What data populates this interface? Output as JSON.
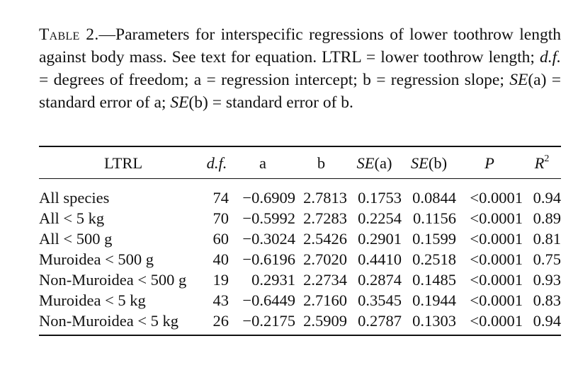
{
  "caption": {
    "label": "Table 2.",
    "text_before": "—Parameters for interspecific regressions of lower toothrow length against body mass. See text for equation. LTRL = lower toothrow length; ",
    "df_italic": "d.f.",
    "text_mid1": " = degrees of freedom; a = regression intercept; b = regression slope; ",
    "sea_italic": "SE",
    "text_mid2": "(a) = standard error of a; ",
    "seb_italic": "SE",
    "text_end": "(b) = standard error of b."
  },
  "table": {
    "headers": {
      "ltrl": "LTRL",
      "df": "d.f.",
      "a": "a",
      "b": "b",
      "sea_italic": "SE",
      "sea_rest": "(a)",
      "seb_italic": "SE",
      "seb_rest": "(b)",
      "p": "P",
      "r2_base": "R",
      "r2_sup": "2"
    },
    "rows": [
      {
        "group": "All species",
        "df": "74",
        "a": "−0.6909",
        "b": "2.7813",
        "sea": "0.1753",
        "seb": "0.0844",
        "p": "<0.0001",
        "r2": "0.94"
      },
      {
        "group": "All < 5 kg",
        "df": "70",
        "a": "−0.5992",
        "b": "2.7283",
        "sea": "0.2254",
        "seb": "0.1156",
        "p": "<0.0001",
        "r2": "0.89"
      },
      {
        "group": "All < 500 g",
        "df": "60",
        "a": "−0.3024",
        "b": "2.5426",
        "sea": "0.2901",
        "seb": "0.1599",
        "p": "<0.0001",
        "r2": "0.81"
      },
      {
        "group": "Muroidea < 500 g",
        "df": "40",
        "a": "−0.6196",
        "b": "2.7020",
        "sea": "0.4410",
        "seb": "0.2518",
        "p": "<0.0001",
        "r2": "0.75"
      },
      {
        "group": "Non-Muroidea < 500 g",
        "df": "19",
        "a": "0.2931",
        "b": "2.2734",
        "sea": "0.2874",
        "seb": "0.1485",
        "p": "<0.0001",
        "r2": "0.93"
      },
      {
        "group": "Muroidea < 5 kg",
        "df": "43",
        "a": "−0.6449",
        "b": "2.7160",
        "sea": "0.3545",
        "seb": "0.1944",
        "p": "<0.0001",
        "r2": "0.83"
      },
      {
        "group": "Non-Muroidea < 5 kg",
        "df": "26",
        "a": "−0.2175",
        "b": "2.5909",
        "sea": "0.2787",
        "seb": "0.1303",
        "p": "<0.0001",
        "r2": "0.94"
      }
    ]
  }
}
